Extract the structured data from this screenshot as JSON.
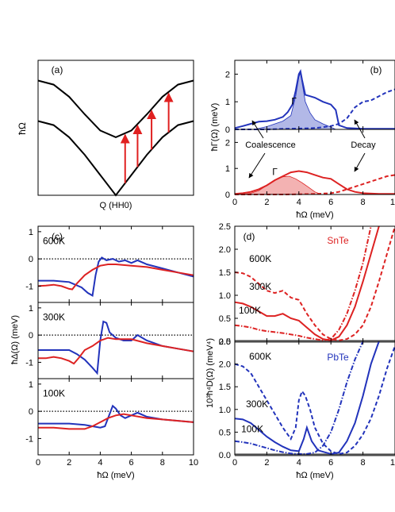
{
  "chart_data": [
    {
      "type": "diagram",
      "panel": "(a)",
      "ylabel": "ħΩ",
      "xlabel": "Q (HH0)",
      "upper_curve": {
        "x": [
          0,
          0.1,
          0.2,
          0.3,
          0.4,
          0.5,
          0.6,
          0.7,
          0.8,
          0.9,
          1.0
        ],
        "y": [
          0.85,
          0.82,
          0.73,
          0.6,
          0.48,
          0.43,
          0.48,
          0.6,
          0.73,
          0.82,
          0.85
        ]
      },
      "lower_curve": {
        "x": [
          0,
          0.1,
          0.2,
          0.3,
          0.4,
          0.5,
          0.6,
          0.7,
          0.8,
          0.9,
          1.0
        ],
        "y": [
          0.55,
          0.52,
          0.43,
          0.3,
          0.15,
          0.0,
          0.15,
          0.3,
          0.43,
          0.52,
          0.55
        ]
      },
      "arrows": [
        {
          "x": 0.56
        },
        {
          "x": 0.64
        },
        {
          "x": 0.73
        },
        {
          "x": 0.84
        }
      ]
    },
    {
      "type": "line",
      "panel": "(b)",
      "ylabel": "ħΓ(Ω) (meV)",
      "xlabel": "ħΩ (meV)",
      "xlim": [
        0,
        10
      ],
      "xticks": [
        "0",
        "2",
        "4",
        "6",
        "8",
        "10"
      ],
      "upper_yticks": [
        "0",
        "1",
        "2"
      ],
      "lower_yticks": [
        "0",
        "1",
        "2"
      ],
      "annotations": [
        "Γ",
        "Γ",
        "Coalescence",
        "Decay"
      ],
      "upper": {
        "ylim": [
          0,
          2.5
        ],
        "series": [
          {
            "color": "#2233bb",
            "style": "solid",
            "x": [
              0,
              0.5,
              1,
              1.5,
              2,
              2.5,
              3,
              3.3,
              3.6,
              3.8,
              4,
              4.1,
              4.2,
              4.4,
              4.7,
              5,
              5.5,
              6,
              6.3,
              6.5,
              7,
              8,
              9,
              10
            ],
            "y": [
              0.05,
              0.12,
              0.2,
              0.28,
              0.3,
              0.35,
              0.45,
              0.62,
              0.9,
              1.4,
              2.0,
              2.1,
              1.8,
              1.25,
              1.2,
              1.15,
              1.0,
              0.9,
              0.7,
              0.15,
              0.05,
              0.02,
              0.02,
              0.02
            ]
          },
          {
            "color": "#2233bb",
            "style": "dashed",
            "x": [
              0,
              1,
              2,
              3,
              4,
              5,
              5.5,
              6,
              6.5,
              7,
              7.5,
              8,
              8.5,
              9,
              9.5,
              10
            ],
            "y": [
              0,
              0,
              0,
              0.02,
              0.03,
              0.05,
              0.08,
              0.12,
              0.2,
              0.4,
              0.8,
              1.0,
              1.05,
              1.2,
              1.35,
              1.45
            ]
          },
          {
            "color": "#2233bb",
            "style": "fill",
            "x": [
              1.2,
              2,
              3,
              3.5,
              3.8,
              4,
              4.1,
              4.2,
              4.4,
              4.7,
              5,
              5.5,
              6,
              6.3
            ],
            "y": [
              0,
              0.1,
              0.3,
              0.5,
              1.2,
              1.9,
              2.05,
              1.7,
              1.0,
              0.6,
              0.35,
              0.2,
              0.08,
              0
            ]
          }
        ]
      },
      "lower": {
        "ylim": [
          0,
          2.5
        ],
        "series": [
          {
            "color": "#dd2222",
            "style": "solid",
            "x": [
              0,
              0.5,
              1,
              1.5,
              2,
              2.5,
              3,
              3.5,
              4,
              4.5,
              5,
              5.5,
              6,
              6.5,
              7,
              7.5,
              8,
              9,
              10
            ],
            "y": [
              0.02,
              0.05,
              0.1,
              0.2,
              0.35,
              0.55,
              0.7,
              0.85,
              0.9,
              0.85,
              0.75,
              0.65,
              0.6,
              0.4,
              0.2,
              0.1,
              0.05,
              0.02,
              0.02
            ]
          },
          {
            "color": "#dd2222",
            "style": "dashed",
            "x": [
              0,
              1,
              2,
              3,
              4,
              5,
              6,
              6.5,
              7,
              7.5,
              8,
              8.5,
              9,
              9.5,
              10
            ],
            "y": [
              0,
              0,
              0,
              0,
              0.01,
              0.02,
              0.05,
              0.1,
              0.2,
              0.3,
              0.4,
              0.5,
              0.6,
              0.7,
              0.75
            ]
          },
          {
            "color": "#dd2222",
            "style": "fill",
            "x": [
              0.5,
              1,
              1.5,
              2,
              2.5,
              3,
              3.4,
              3.8,
              4.2,
              4.6,
              5,
              5.4
            ],
            "y": [
              0,
              0.05,
              0.15,
              0.35,
              0.55,
              0.68,
              0.7,
              0.6,
              0.45,
              0.28,
              0.1,
              0
            ]
          }
        ]
      }
    },
    {
      "type": "line",
      "panel": "(c)",
      "ylabel": "ħΔ(Ω) (meV)",
      "xlabel": "ħΩ (meV)",
      "xlim": [
        0,
        10
      ],
      "xticks": [
        "0",
        "2",
        "4",
        "6",
        "8",
        "10"
      ],
      "yticks": [
        "1",
        "0",
        "-1"
      ],
      "subpanels": [
        {
          "label": "600K",
          "ylim": [
            -1.6,
            1.2
          ],
          "series": [
            {
              "color": "#2233bb",
              "x": [
                0,
                1,
                2,
                2.8,
                3.2,
                3.5,
                3.7,
                3.9,
                4.1,
                4.4,
                4.8,
                5.2,
                5.6,
                6,
                6.4,
                7,
                8,
                9,
                10
              ],
              "y": [
                -0.8,
                -0.8,
                -0.85,
                -1.05,
                -1.25,
                -1.35,
                -0.6,
                -0.1,
                0.05,
                -0.05,
                0.0,
                -0.1,
                -0.05,
                -0.15,
                -0.05,
                -0.2,
                -0.35,
                -0.5,
                -0.65
              ]
            },
            {
              "color": "#dd2222",
              "x": [
                0,
                0.5,
                1,
                1.5,
                2,
                2.2,
                2.5,
                3,
                3.5,
                4,
                4.5,
                5,
                6,
                7,
                8,
                9,
                10
              ],
              "y": [
                -1.0,
                -0.98,
                -0.95,
                -1.0,
                -1.1,
                -1.12,
                -0.9,
                -0.6,
                -0.4,
                -0.25,
                -0.2,
                -0.2,
                -0.25,
                -0.3,
                -0.4,
                -0.5,
                -0.6
              ]
            }
          ]
        },
        {
          "label": "300K",
          "ylim": [
            -1.6,
            1.2
          ],
          "series": [
            {
              "color": "#2233bb",
              "x": [
                0,
                1,
                2,
                2.5,
                3,
                3.5,
                3.8,
                4.0,
                4.2,
                4.4,
                4.6,
                5,
                5.5,
                6,
                6.4,
                7,
                8,
                9,
                10
              ],
              "y": [
                -0.55,
                -0.55,
                -0.55,
                -0.7,
                -0.9,
                -1.2,
                -1.4,
                -0.2,
                0.5,
                0.45,
                0.1,
                -0.1,
                -0.2,
                -0.2,
                0.0,
                -0.2,
                -0.4,
                -0.5,
                -0.6
              ]
            },
            {
              "color": "#dd2222",
              "x": [
                0,
                0.5,
                1,
                1.5,
                2,
                2.3,
                2.6,
                3,
                3.5,
                4,
                4.5,
                5,
                6,
                7,
                8,
                9,
                10
              ],
              "y": [
                -0.85,
                -0.85,
                -0.8,
                -0.85,
                -0.95,
                -1.05,
                -0.85,
                -0.55,
                -0.4,
                -0.2,
                -0.1,
                -0.15,
                -0.15,
                -0.3,
                -0.4,
                -0.5,
                -0.6
              ]
            }
          ]
        },
        {
          "label": "100K",
          "ylim": [
            -1.6,
            1.2
          ],
          "series": [
            {
              "color": "#2233bb",
              "x": [
                0,
                1,
                2,
                3,
                3.5,
                4,
                4.3,
                4.6,
                4.8,
                5.0,
                5.3,
                5.6,
                6,
                6.4,
                7,
                8,
                9,
                10
              ],
              "y": [
                -0.45,
                -0.45,
                -0.45,
                -0.5,
                -0.55,
                -0.6,
                -0.55,
                -0.1,
                0.2,
                0.1,
                -0.15,
                -0.25,
                -0.15,
                -0.05,
                -0.2,
                -0.3,
                -0.35,
                -0.4
              ]
            },
            {
              "color": "#dd2222",
              "x": [
                0,
                1,
                2,
                3,
                3.5,
                4,
                4.5,
                5,
                5.5,
                6,
                6.5,
                7,
                8,
                9,
                10
              ],
              "y": [
                -0.6,
                -0.6,
                -0.65,
                -0.65,
                -0.55,
                -0.4,
                -0.25,
                -0.15,
                -0.1,
                -0.15,
                -0.2,
                -0.25,
                -0.3,
                -0.35,
                -0.4
              ]
            }
          ]
        }
      ]
    },
    {
      "type": "line",
      "panel": "(d)",
      "ylabel": "10³ħ⁴D(Ω) (meV⁴)",
      "xlabel": "ħΩ (meV)",
      "xlim": [
        0,
        10
      ],
      "xticks": [
        "0",
        "2",
        "4",
        "6",
        "8",
        "10"
      ],
      "yticks": [
        "0.0",
        "0.5",
        "1.0",
        "1.5",
        "2.0",
        "2.5"
      ],
      "subpanels": [
        {
          "material": "SnTe",
          "color": "#dd2222",
          "ylim": [
            0,
            2.5
          ],
          "series": [
            {
              "label": "600K",
              "style": "dashed",
              "x": [
                0,
                0.5,
                1,
                1.5,
                2,
                2.5,
                3,
                3.5,
                4,
                4.5,
                5,
                5.5,
                6,
                6.5,
                7,
                7.5,
                8,
                8.5,
                9,
                9.5,
                10
              ],
              "y": [
                1.5,
                1.48,
                1.4,
                1.25,
                1.1,
                1.05,
                1.1,
                0.95,
                0.9,
                0.6,
                0.35,
                0.15,
                0.05,
                0.02,
                0.05,
                0.15,
                0.35,
                0.75,
                1.3,
                1.9,
                2.5
              ]
            },
            {
              "label": "300K",
              "style": "solid",
              "x": [
                0,
                0.5,
                1,
                1.5,
                2,
                2.5,
                3,
                3.5,
                4,
                4.5,
                5,
                5.5,
                6,
                6.5,
                7,
                7.5,
                8,
                8.5,
                9
              ],
              "y": [
                0.85,
                0.82,
                0.75,
                0.65,
                0.55,
                0.55,
                0.6,
                0.5,
                0.45,
                0.3,
                0.15,
                0.05,
                0.02,
                0.1,
                0.35,
                0.75,
                1.3,
                1.9,
                2.5
              ]
            },
            {
              "label": "100K",
              "style": "dashdot",
              "x": [
                0,
                0.5,
                1,
                1.5,
                2,
                2.5,
                3,
                3.5,
                4,
                4.5,
                5,
                5.5,
                6,
                6.5,
                7,
                7.5,
                8,
                8.5
              ],
              "y": [
                0.35,
                0.33,
                0.3,
                0.25,
                0.22,
                0.2,
                0.18,
                0.15,
                0.12,
                0.08,
                0.05,
                0.02,
                0.05,
                0.25,
                0.6,
                1.1,
                1.7,
                2.5
              ]
            }
          ]
        },
        {
          "material": "PbTe",
          "color": "#2233bb",
          "ylim": [
            0,
            2.5
          ],
          "series": [
            {
              "label": "600K",
              "style": "dashed",
              "x": [
                0,
                0.5,
                1,
                1.5,
                2,
                2.5,
                3,
                3.5,
                3.8,
                4,
                4.2,
                4.4,
                4.7,
                5,
                5.5,
                6,
                6.5,
                7,
                7.5,
                8,
                8.5,
                9,
                9.5,
                10
              ],
              "y": [
                2.0,
                1.95,
                1.8,
                1.5,
                1.2,
                0.9,
                0.6,
                0.35,
                0.6,
                1.2,
                1.4,
                1.3,
                1.0,
                0.6,
                0.25,
                0.08,
                0.02,
                0.05,
                0.2,
                0.45,
                0.8,
                1.3,
                1.9,
                2.4
              ]
            },
            {
              "label": "300K",
              "style": "solid",
              "x": [
                0,
                0.5,
                1,
                1.5,
                2,
                2.5,
                3,
                3.5,
                4,
                4.3,
                4.5,
                4.8,
                5.2,
                6,
                6.5,
                7,
                7.5,
                8,
                8.5,
                9
              ],
              "y": [
                0.8,
                0.78,
                0.7,
                0.55,
                0.4,
                0.28,
                0.18,
                0.1,
                0.08,
                0.35,
                0.6,
                0.3,
                0.1,
                0.02,
                0.05,
                0.3,
                0.7,
                1.3,
                2.0,
                2.5
              ]
            },
            {
              "label": "100K",
              "style": "dashdot",
              "x": [
                0,
                0.5,
                1,
                1.5,
                2,
                2.5,
                3,
                3.5,
                4,
                4.5,
                5,
                5.5,
                6,
                6.5,
                7,
                7.5,
                8
              ],
              "y": [
                0.3,
                0.28,
                0.25,
                0.2,
                0.15,
                0.1,
                0.06,
                0.03,
                0.02,
                0.02,
                0.05,
                0.2,
                0.5,
                1.0,
                1.6,
                2.1,
                2.5
              ]
            }
          ]
        }
      ]
    }
  ]
}
